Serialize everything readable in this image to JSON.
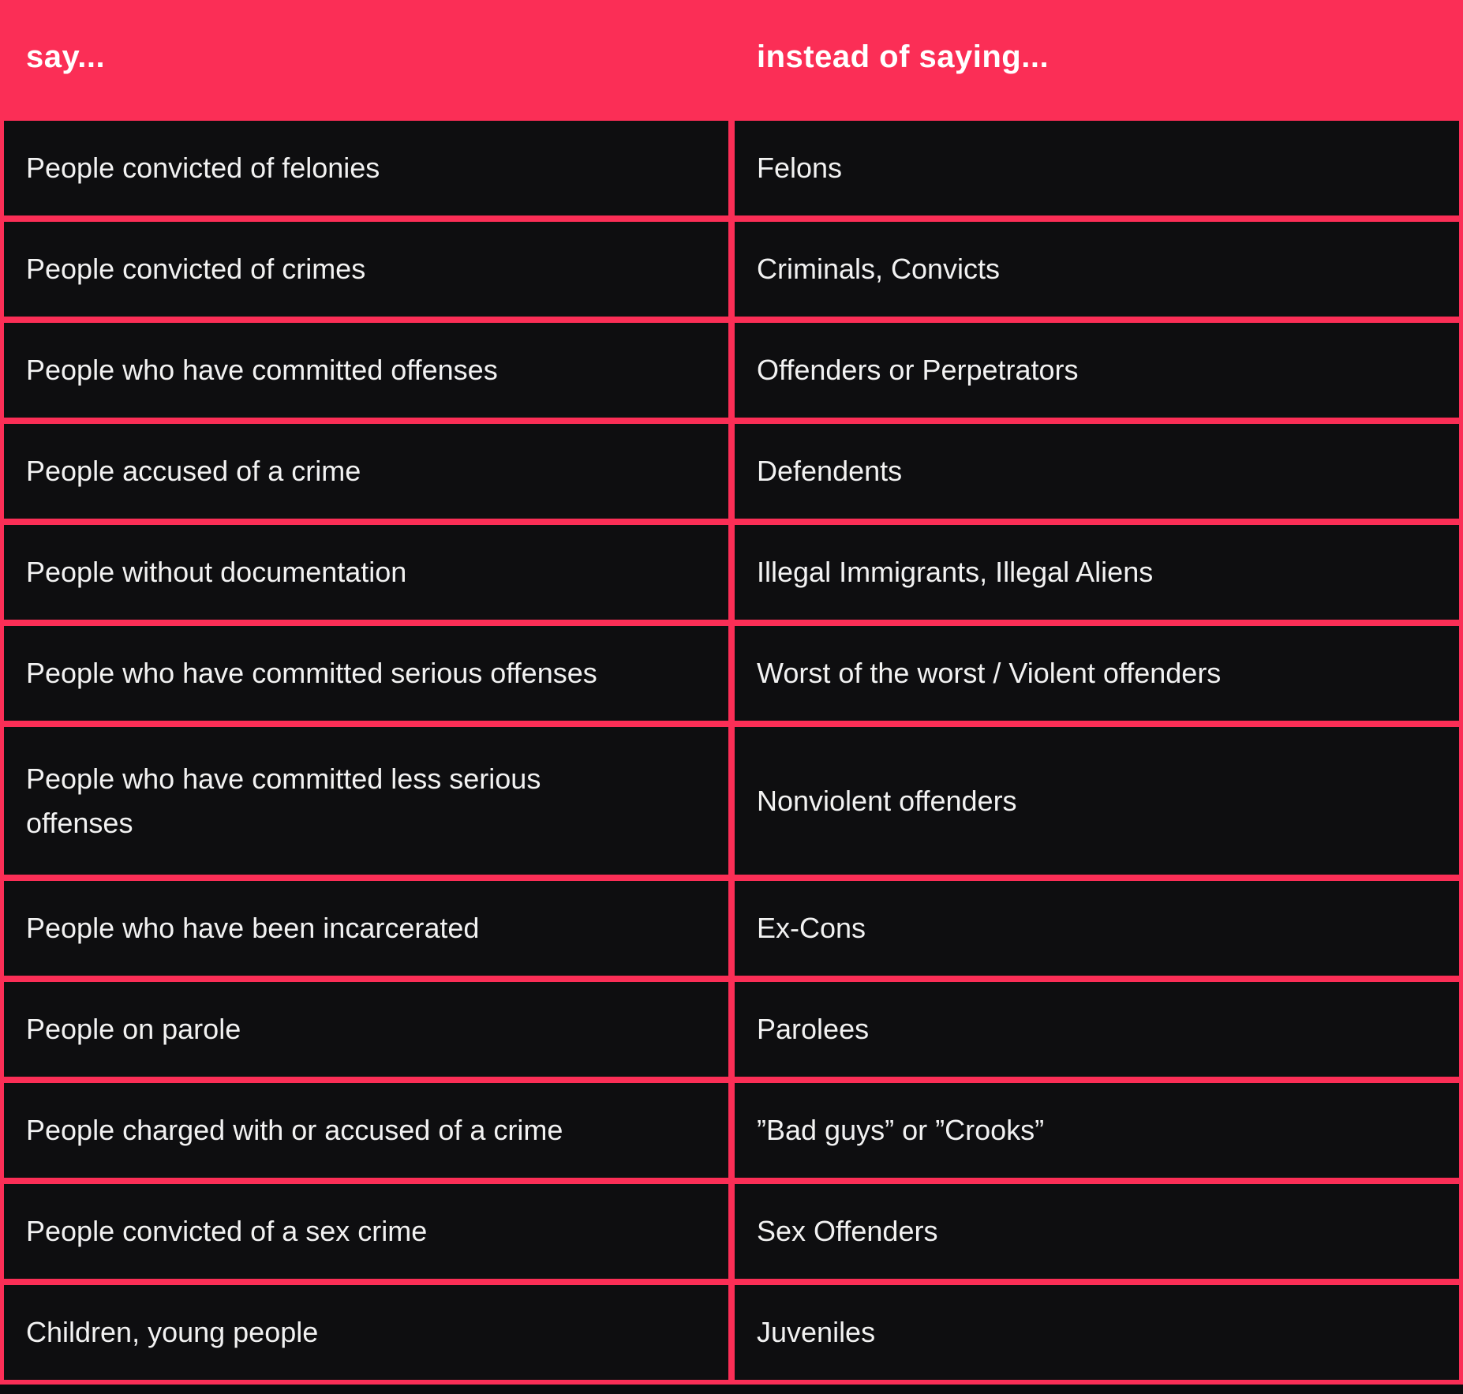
{
  "table": {
    "header": {
      "say_label": "say...",
      "instead_label": "instead of saying..."
    },
    "rows": [
      {
        "say": "People convicted of felonies",
        "instead": "Felons"
      },
      {
        "say": "People convicted of crimes",
        "instead": "Criminals, Convicts"
      },
      {
        "say": "People who have committed offenses",
        "instead": "Offenders or Perpetrators"
      },
      {
        "say": "People accused of a crime",
        "instead": "Defendents"
      },
      {
        "say": "People without documentation",
        "instead": "Illegal Immigrants, Illegal Aliens"
      },
      {
        "say": "People who have committed serious offenses",
        "instead": "Worst of the worst / Violent offenders"
      },
      {
        "say": "People who have committed less serious offenses",
        "instead": "Nonviolent offenders"
      },
      {
        "say": "People who have been incarcerated",
        "instead": "Ex-Cons"
      },
      {
        "say": "People on parole",
        "instead": "Parolees"
      },
      {
        "say": "People charged with or accused of a crime",
        "instead": "”Bad guys” or ”Crooks”"
      },
      {
        "say": "People convicted of a sex crime",
        "instead": "Sex Offenders"
      },
      {
        "say": "Children, young people",
        "instead": "Juveniles"
      }
    ]
  },
  "colors": {
    "accent": "#FB2E56",
    "cell_background": "#0E0E10",
    "header_text": "#FFFFFF",
    "row_text": "#F2F2F2"
  }
}
